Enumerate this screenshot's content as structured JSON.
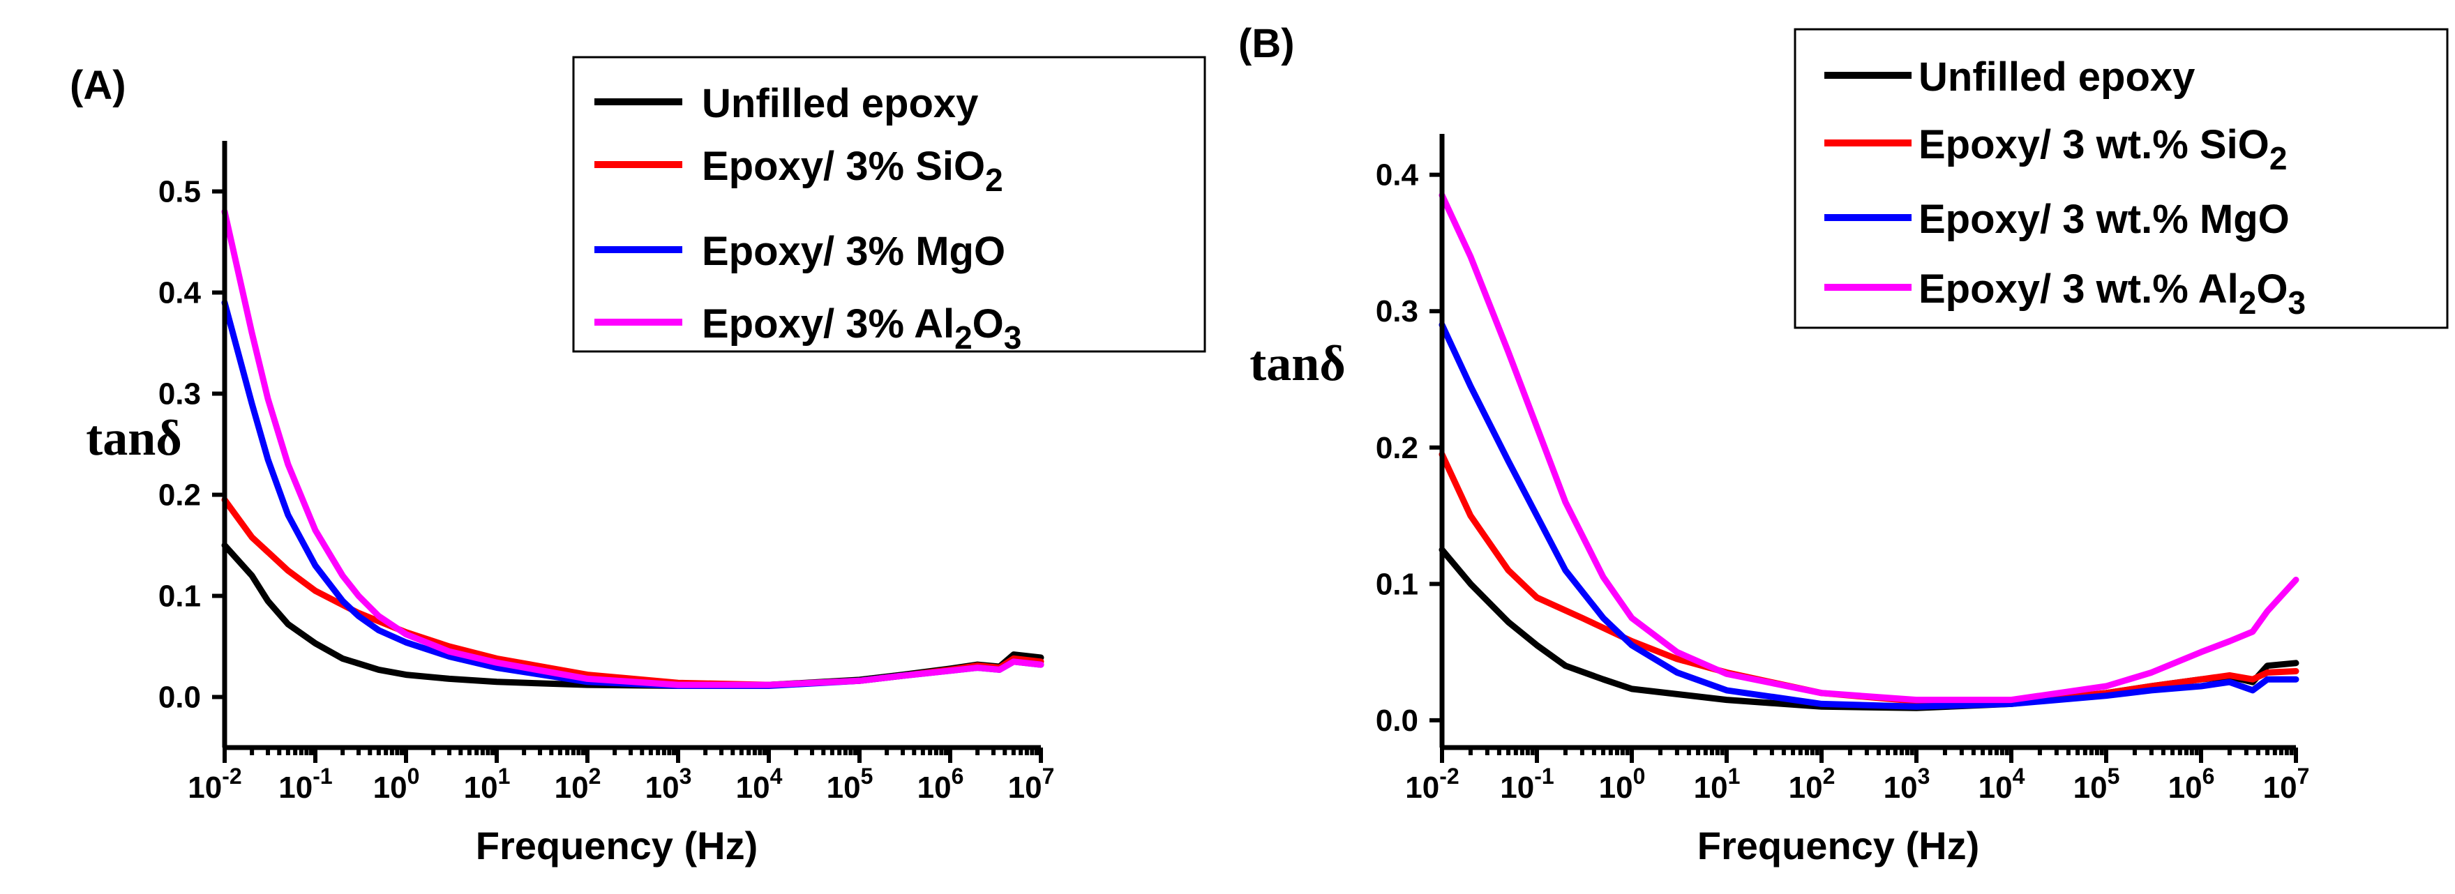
{
  "chart_data": [
    {
      "type": "line",
      "panel_label": "(A)",
      "xlabel": "Frequency (Hz)",
      "ylabel": "tanδ",
      "xscale": "log",
      "xlim": [
        0.01,
        10000000
      ],
      "ylim": [
        -0.05,
        0.55
      ],
      "x_ticks": [
        {
          "v": 0.01,
          "base": "10",
          "exp": "-2"
        },
        {
          "v": 0.1,
          "base": "10",
          "exp": "-1"
        },
        {
          "v": 1,
          "base": "10",
          "exp": "0"
        },
        {
          "v": 10,
          "base": "10",
          "exp": "1"
        },
        {
          "v": 100,
          "base": "10",
          "exp": "2"
        },
        {
          "v": 1000,
          "base": "10",
          "exp": "3"
        },
        {
          "v": 10000,
          "base": "10",
          "exp": "4"
        },
        {
          "v": 100000,
          "base": "10",
          "exp": "5"
        },
        {
          "v": 1000000,
          "base": "10",
          "exp": "6"
        },
        {
          "v": 10000000,
          "base": "10",
          "exp": "7"
        }
      ],
      "y_ticks": [
        {
          "v": 0.0,
          "label": "0.0"
        },
        {
          "v": 0.1,
          "label": "0.1"
        },
        {
          "v": 0.2,
          "label": "0.2"
        },
        {
          "v": 0.3,
          "label": "0.3"
        },
        {
          "v": 0.4,
          "label": "0.4"
        },
        {
          "v": 0.5,
          "label": "0.5"
        }
      ],
      "grid": false,
      "legend_position": "top-right",
      "series": [
        {
          "name": "Unfilled epoxy",
          "color": "#000000",
          "legend": [
            {
              "t": "Unfilled epoxy"
            }
          ],
          "points": [
            [
              0.01,
              0.15
            ],
            [
              0.02,
              0.12
            ],
            [
              0.03,
              0.095
            ],
            [
              0.05,
              0.072
            ],
            [
              0.1,
              0.053
            ],
            [
              0.2,
              0.038
            ],
            [
              0.5,
              0.027
            ],
            [
              1,
              0.022
            ],
            [
              3,
              0.018
            ],
            [
              10,
              0.015
            ],
            [
              100,
              0.012
            ],
            [
              1000,
              0.011
            ],
            [
              10000,
              0.012
            ],
            [
              100000,
              0.017
            ],
            [
              300000,
              0.022
            ],
            [
              1000000,
              0.028
            ],
            [
              2000000,
              0.032
            ],
            [
              3500000,
              0.03
            ],
            [
              5000000,
              0.042
            ],
            [
              10000000,
              0.039
            ]
          ]
        },
        {
          "name": "Epoxy/ 3% SiO2",
          "color": "#ff0000",
          "legend": [
            {
              "t": "Epoxy/ 3% SiO"
            },
            {
              "t": "2",
              "sub": true
            }
          ],
          "points": [
            [
              0.01,
              0.195
            ],
            [
              0.02,
              0.158
            ],
            [
              0.05,
              0.125
            ],
            [
              0.1,
              0.105
            ],
            [
              0.3,
              0.083
            ],
            [
              1,
              0.064
            ],
            [
              3,
              0.05
            ],
            [
              10,
              0.038
            ],
            [
              100,
              0.022
            ],
            [
              1000,
              0.014
            ],
            [
              10000,
              0.012
            ],
            [
              100000,
              0.016
            ],
            [
              300000,
              0.021
            ],
            [
              1000000,
              0.027
            ],
            [
              2000000,
              0.031
            ],
            [
              3500000,
              0.029
            ],
            [
              5000000,
              0.038
            ],
            [
              10000000,
              0.035
            ]
          ]
        },
        {
          "name": "Epoxy/ 3% MgO",
          "color": "#0000ff",
          "legend": [
            {
              "t": "Epoxy/ 3% MgO"
            }
          ],
          "points": [
            [
              0.01,
              0.39
            ],
            [
              0.02,
              0.29
            ],
            [
              0.03,
              0.235
            ],
            [
              0.05,
              0.18
            ],
            [
              0.1,
              0.13
            ],
            [
              0.2,
              0.095
            ],
            [
              0.3,
              0.08
            ],
            [
              0.5,
              0.066
            ],
            [
              1,
              0.054
            ],
            [
              3,
              0.04
            ],
            [
              10,
              0.029
            ],
            [
              100,
              0.015
            ],
            [
              1000,
              0.011
            ],
            [
              10000,
              0.011
            ],
            [
              100000,
              0.016
            ],
            [
              300000,
              0.021
            ],
            [
              1000000,
              0.026
            ],
            [
              2000000,
              0.029
            ],
            [
              3500000,
              0.027
            ],
            [
              5000000,
              0.035
            ],
            [
              10000000,
              0.032
            ]
          ]
        },
        {
          "name": "Epoxy/ 3% Al2O3",
          "color": "#ff00ff",
          "legend": [
            {
              "t": "Epoxy/ 3% Al"
            },
            {
              "t": "2",
              "sub": true
            },
            {
              "t": "O"
            },
            {
              "t": "3",
              "sub": true
            }
          ],
          "points": [
            [
              0.01,
              0.48
            ],
            [
              0.02,
              0.36
            ],
            [
              0.03,
              0.295
            ],
            [
              0.05,
              0.23
            ],
            [
              0.1,
              0.165
            ],
            [
              0.2,
              0.12
            ],
            [
              0.3,
              0.1
            ],
            [
              0.5,
              0.08
            ],
            [
              1,
              0.062
            ],
            [
              3,
              0.045
            ],
            [
              10,
              0.034
            ],
            [
              100,
              0.018
            ],
            [
              1000,
              0.012
            ],
            [
              10000,
              0.012
            ],
            [
              100000,
              0.016
            ],
            [
              300000,
              0.021
            ],
            [
              1000000,
              0.026
            ],
            [
              2000000,
              0.029
            ],
            [
              3500000,
              0.027
            ],
            [
              5000000,
              0.035
            ],
            [
              10000000,
              0.032
            ]
          ]
        }
      ]
    },
    {
      "type": "line",
      "panel_label": "(B)",
      "xlabel": "Frequency (Hz)",
      "ylabel": "tanδ",
      "xscale": "log",
      "xlim": [
        0.01,
        10000000
      ],
      "ylim": [
        -0.02,
        0.43
      ],
      "x_ticks": [
        {
          "v": 0.01,
          "base": "10",
          "exp": "-2"
        },
        {
          "v": 0.1,
          "base": "10",
          "exp": "-1"
        },
        {
          "v": 1,
          "base": "10",
          "exp": "0"
        },
        {
          "v": 10,
          "base": "10",
          "exp": "1"
        },
        {
          "v": 100,
          "base": "10",
          "exp": "2"
        },
        {
          "v": 1000,
          "base": "10",
          "exp": "3"
        },
        {
          "v": 10000,
          "base": "10",
          "exp": "4"
        },
        {
          "v": 100000,
          "base": "10",
          "exp": "5"
        },
        {
          "v": 1000000,
          "base": "10",
          "exp": "6"
        },
        {
          "v": 10000000,
          "base": "10",
          "exp": "7"
        }
      ],
      "y_ticks": [
        {
          "v": 0.0,
          "label": "0.0"
        },
        {
          "v": 0.1,
          "label": "0.1"
        },
        {
          "v": 0.2,
          "label": "0.2"
        },
        {
          "v": 0.3,
          "label": "0.3"
        },
        {
          "v": 0.4,
          "label": "0.4"
        }
      ],
      "grid": false,
      "legend_position": "top-right",
      "series": [
        {
          "name": "Unfilled epoxy",
          "color": "#000000",
          "legend": [
            {
              "t": "Unfilled epoxy"
            }
          ],
          "points": [
            [
              0.01,
              0.125
            ],
            [
              0.02,
              0.1
            ],
            [
              0.05,
              0.072
            ],
            [
              0.1,
              0.055
            ],
            [
              0.2,
              0.04
            ],
            [
              0.5,
              0.03
            ],
            [
              1,
              0.023
            ],
            [
              10,
              0.015
            ],
            [
              100,
              0.01
            ],
            [
              1000,
              0.009
            ],
            [
              10000,
              0.012
            ],
            [
              100000,
              0.02
            ],
            [
              300000,
              0.025
            ],
            [
              1000000,
              0.03
            ],
            [
              2000000,
              0.032
            ],
            [
              3500000,
              0.028
            ],
            [
              5000000,
              0.04
            ],
            [
              10000000,
              0.042
            ]
          ]
        },
        {
          "name": "Epoxy/ 3 wt.% SiO2",
          "color": "#ff0000",
          "legend": [
            {
              "t": "Epoxy/ 3 wt.% SiO"
            },
            {
              "t": "2",
              "sub": true
            }
          ],
          "points": [
            [
              0.01,
              0.195
            ],
            [
              0.02,
              0.15
            ],
            [
              0.05,
              0.11
            ],
            [
              0.1,
              0.09
            ],
            [
              0.3,
              0.075
            ],
            [
              1,
              0.058
            ],
            [
              3,
              0.045
            ],
            [
              10,
              0.035
            ],
            [
              100,
              0.02
            ],
            [
              1000,
              0.014
            ],
            [
              10000,
              0.013
            ],
            [
              100000,
              0.02
            ],
            [
              300000,
              0.025
            ],
            [
              1000000,
              0.03
            ],
            [
              2000000,
              0.033
            ],
            [
              3500000,
              0.03
            ],
            [
              5000000,
              0.035
            ],
            [
              10000000,
              0.036
            ]
          ]
        },
        {
          "name": "Epoxy/ 3 wt.% MgO",
          "color": "#0000ff",
          "legend": [
            {
              "t": "Epoxy/ 3 wt.% MgO"
            }
          ],
          "points": [
            [
              0.01,
              0.29
            ],
            [
              0.02,
              0.245
            ],
            [
              0.05,
              0.19
            ],
            [
              0.1,
              0.15
            ],
            [
              0.2,
              0.11
            ],
            [
              0.5,
              0.075
            ],
            [
              1,
              0.055
            ],
            [
              3,
              0.035
            ],
            [
              10,
              0.022
            ],
            [
              100,
              0.012
            ],
            [
              1000,
              0.01
            ],
            [
              10000,
              0.012
            ],
            [
              100000,
              0.018
            ],
            [
              300000,
              0.022
            ],
            [
              1000000,
              0.025
            ],
            [
              2000000,
              0.028
            ],
            [
              3500000,
              0.022
            ],
            [
              5000000,
              0.03
            ],
            [
              10000000,
              0.03
            ]
          ]
        },
        {
          "name": "Epoxy/ 3 wt.% Al2O3",
          "color": "#ff00ff",
          "legend": [
            {
              "t": "Epoxy/ 3 wt.% Al"
            },
            {
              "t": "2",
              "sub": true
            },
            {
              "t": "O"
            },
            {
              "t": "3",
              "sub": true
            }
          ],
          "points": [
            [
              0.01,
              0.385
            ],
            [
              0.02,
              0.34
            ],
            [
              0.05,
              0.27
            ],
            [
              0.1,
              0.215
            ],
            [
              0.2,
              0.16
            ],
            [
              0.5,
              0.105
            ],
            [
              1,
              0.075
            ],
            [
              3,
              0.05
            ],
            [
              10,
              0.034
            ],
            [
              100,
              0.02
            ],
            [
              1000,
              0.015
            ],
            [
              10000,
              0.015
            ],
            [
              100000,
              0.025
            ],
            [
              300000,
              0.035
            ],
            [
              1000000,
              0.05
            ],
            [
              2000000,
              0.058
            ],
            [
              3500000,
              0.065
            ],
            [
              5000000,
              0.08
            ],
            [
              10000000,
              0.103
            ]
          ]
        }
      ]
    }
  ]
}
